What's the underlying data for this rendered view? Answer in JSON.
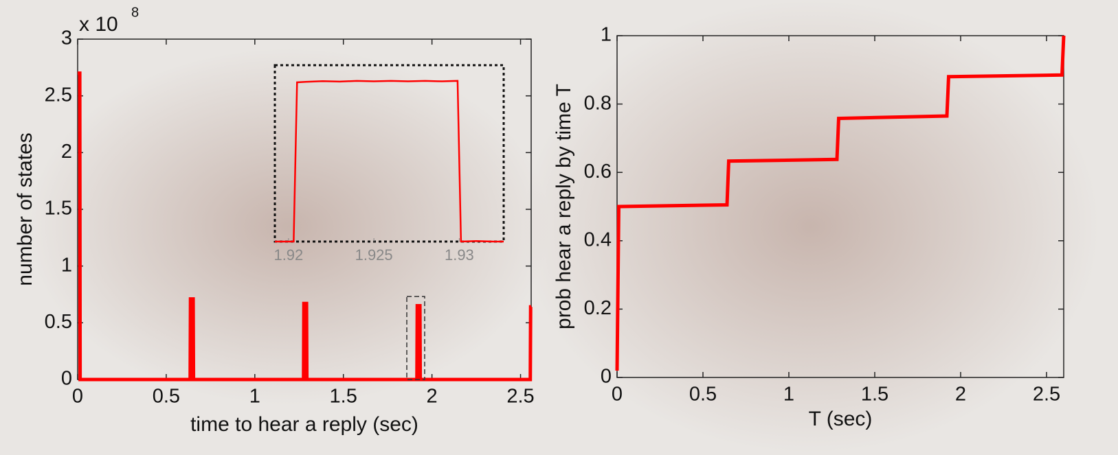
{
  "chart_data": [
    {
      "type": "line",
      "xlabel": "time to hear a reply (sec)",
      "ylabel": "number of states",
      "y_multiplier": "x 10",
      "y_multiplier_exp": "8",
      "xlim": [
        0,
        2.56
      ],
      "xticks": [
        0,
        0.5,
        1,
        1.5,
        2,
        2.5
      ],
      "ylim": [
        0,
        3
      ],
      "yticks": [
        0,
        0.5,
        1,
        1.5,
        2,
        2.5,
        3
      ],
      "series": [
        {
          "color": "#ff0000",
          "x": [
            0,
            0.002,
            0.012,
            0.014,
            0.635,
            0.637,
            0.652,
            0.654,
            1.275,
            1.277,
            1.292,
            1.294,
            1.915,
            1.917,
            1.932,
            1.934,
            2.555,
            2.557,
            2.56
          ],
          "values": [
            2.7,
            2.7,
            2.7,
            0,
            0,
            0.71,
            0.71,
            0,
            0,
            0.67,
            0.67,
            0,
            0,
            0.65,
            0.65,
            0,
            0,
            0.64,
            0.64
          ]
        }
      ],
      "inset": {
        "xlim": [
          1.9192,
          1.9326
        ],
        "xticks": [
          1.92,
          1.925,
          1.93
        ],
        "ylim": [
          0,
          0.72
        ],
        "x": [
          1.9192,
          1.9203,
          1.9205,
          1.921,
          1.922,
          1.923,
          1.924,
          1.925,
          1.926,
          1.927,
          1.928,
          1.929,
          1.9299,
          1.9301,
          1.931,
          1.932,
          1.9326
        ],
        "values": [
          0,
          0,
          0.65,
          0.652,
          0.655,
          0.653,
          0.656,
          0.654,
          0.656,
          0.654,
          0.656,
          0.654,
          0.656,
          0,
          0.002,
          0,
          0
        ]
      }
    },
    {
      "type": "line",
      "xlabel": "T (sec)",
      "ylabel": "prob hear a reply by time T",
      "xlim": [
        0,
        2.6
      ],
      "xticks": [
        0,
        0.5,
        1,
        1.5,
        2,
        2.5
      ],
      "ylim": [
        0,
        1
      ],
      "yticks": [
        0,
        0.2,
        0.4,
        0.6,
        0.8,
        1
      ],
      "series": [
        {
          "color": "#ff0000",
          "x": [
            0,
            0.01,
            0.64,
            0.65,
            1.28,
            1.29,
            1.92,
            1.93,
            2.59,
            2.6
          ],
          "values": [
            0.02,
            0.5,
            0.505,
            0.633,
            0.638,
            0.758,
            0.765,
            0.88,
            0.885,
            1
          ]
        }
      ]
    }
  ]
}
